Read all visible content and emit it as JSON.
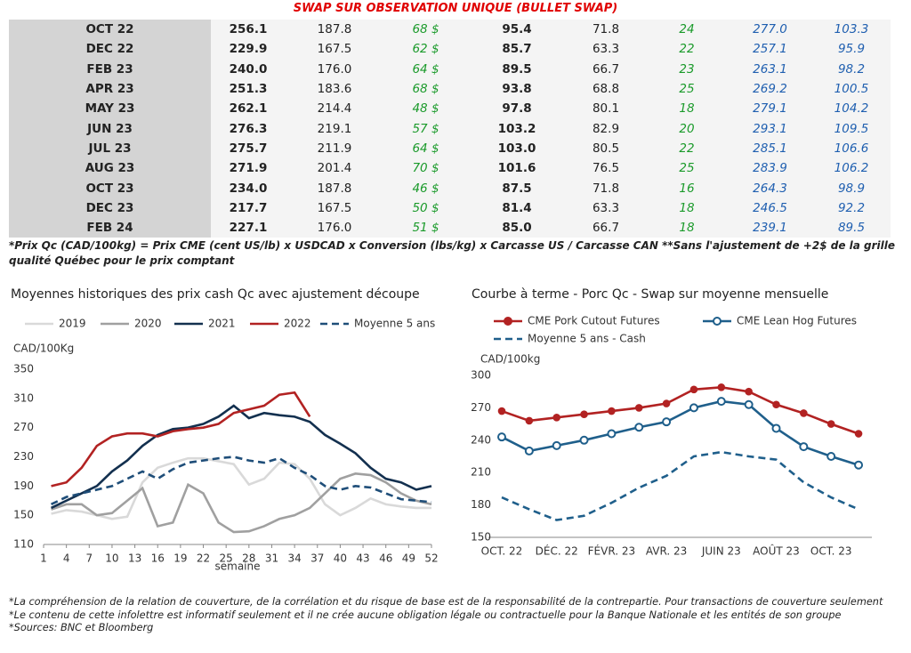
{
  "title": "SWAP SUR OBSERVATION UNIQUE (BULLET SWAP)",
  "table": {
    "rows": [
      [
        "OCT 22",
        "256.1",
        "187.8",
        "68 $",
        "95.4",
        "71.8",
        "24",
        "277.0",
        "103.3"
      ],
      [
        "DEC 22",
        "229.9",
        "167.5",
        "62 $",
        "85.7",
        "63.3",
        "22",
        "257.1",
        "95.9"
      ],
      [
        "FEB 23",
        "240.0",
        "176.0",
        "64 $",
        "89.5",
        "66.7",
        "23",
        "263.1",
        "98.2"
      ],
      [
        "APR 23",
        "251.3",
        "183.6",
        "68 $",
        "93.8",
        "68.8",
        "25",
        "269.2",
        "100.5"
      ],
      [
        "MAY 23",
        "262.1",
        "214.4",
        "48 $",
        "97.8",
        "80.1",
        "18",
        "279.1",
        "104.2"
      ],
      [
        "JUN 23",
        "276.3",
        "219.1",
        "57 $",
        "103.2",
        "82.9",
        "20",
        "293.1",
        "109.5"
      ],
      [
        "JUL 23",
        "275.7",
        "211.9",
        "64 $",
        "103.0",
        "80.5",
        "22",
        "285.1",
        "106.6"
      ],
      [
        "AUG 23",
        "271.9",
        "201.4",
        "70 $",
        "101.6",
        "76.5",
        "25",
        "283.9",
        "106.2"
      ],
      [
        "OCT 23",
        "234.0",
        "187.8",
        "46 $",
        "87.5",
        "71.8",
        "16",
        "264.3",
        "98.9"
      ],
      [
        "DEC 23",
        "217.7",
        "167.5",
        "50 $",
        "81.4",
        "63.3",
        "18",
        "246.5",
        "92.2"
      ],
      [
        "FEB 24",
        "227.1",
        "176.0",
        "51 $",
        "85.0",
        "66.7",
        "18",
        "239.1",
        "89.5"
      ]
    ]
  },
  "note": "*Prix Qc (CAD/100kg) = Prix CME (cent US/lb) x USDCAD x Conversion (lbs/kg) x Carcasse US / Carcasse CAN **Sans l'ajustement de +2$ de la grille qualité Québec pour le prix comptant",
  "footer": [
    "*La compréhension de la relation de couverture, de la corrélation et du risque de base est de la responsabilité de la contrepartie. Pour transactions de couverture seulement",
    "*Le contenu de cette infolettre est informatif seulement et il ne crée aucune obligation légale ou contractuelle pour la Banque Nationale et les entités de son groupe",
    "*Sources: BNC et Bloomberg"
  ],
  "chart_data": [
    {
      "type": "line",
      "title": "Moyennes historiques des prix cash Qc avec ajustement découpe",
      "y_label": "CAD/100Kg",
      "x_label": "semaine",
      "x": [
        2,
        4,
        6,
        8,
        10,
        12,
        14,
        16,
        18,
        20,
        22,
        24,
        26,
        28,
        30,
        32,
        34,
        36,
        38,
        40,
        42,
        44,
        46,
        48,
        50,
        52
      ],
      "xlim": [
        1,
        52
      ],
      "xticks": [
        1,
        4,
        7,
        10,
        13,
        16,
        19,
        22,
        25,
        28,
        31,
        34,
        37,
        40,
        43,
        46,
        49,
        52
      ],
      "ylim": [
        110,
        350
      ],
      "yticks": [
        110,
        150,
        190,
        230,
        270,
        310,
        350
      ],
      "series": [
        {
          "name": "2019",
          "color": "#d9d9d9",
          "values": [
            152,
            157,
            155,
            150,
            145,
            148,
            195,
            215,
            222,
            228,
            228,
            224,
            220,
            192,
            200,
            222,
            220,
            200,
            165,
            150,
            160,
            173,
            165,
            162,
            160,
            160
          ]
        },
        {
          "name": "2020",
          "color": "#a0a0a0",
          "values": [
            158,
            165,
            165,
            150,
            153,
            170,
            187,
            135,
            140,
            192,
            180,
            140,
            127,
            128,
            135,
            145,
            150,
            160,
            180,
            200,
            207,
            205,
            195,
            180,
            170,
            165
          ]
        },
        {
          "name": "2021",
          "color": "#13304f",
          "values": [
            160,
            170,
            180,
            190,
            210,
            225,
            245,
            260,
            268,
            270,
            275,
            285,
            300,
            283,
            290,
            287,
            285,
            278,
            260,
            248,
            235,
            215,
            200,
            195,
            185,
            190
          ]
        },
        {
          "name": "2022",
          "color": "#b22222",
          "values": [
            190,
            195,
            215,
            245,
            258,
            262,
            262,
            258,
            265,
            268,
            270,
            275,
            290,
            295,
            300,
            315,
            318,
            285,
            null,
            null,
            null,
            null,
            null,
            null,
            null,
            null
          ]
        },
        {
          "name": "Moyenne 5 ans",
          "color": "#1f4e79",
          "dash": true,
          "values": [
            165,
            175,
            180,
            185,
            190,
            200,
            210,
            200,
            213,
            222,
            225,
            228,
            230,
            225,
            222,
            228,
            215,
            205,
            190,
            185,
            190,
            188,
            180,
            172,
            170,
            168
          ]
        }
      ]
    },
    {
      "type": "line",
      "title": "Courbe à terme - Porc Qc - Swap sur moyenne mensuelle",
      "y_label": "CAD/100kg",
      "categories": [
        "OCT. 22",
        null,
        "DÉC. 22",
        null,
        "FÉVR. 23",
        null,
        "AVR. 23",
        null,
        "JUIN 23",
        null,
        "AOÛT 23",
        null,
        "OCT. 23",
        null
      ],
      "ylim": [
        150,
        300
      ],
      "yticks": [
        150,
        180,
        210,
        240,
        270,
        300
      ],
      "series": [
        {
          "name": "CME Pork Cutout Futures",
          "color": "#b22222",
          "marker": "filled",
          "values": [
            267,
            258,
            261,
            264,
            267,
            270,
            274,
            287,
            289,
            285,
            273,
            265,
            255,
            246
          ]
        },
        {
          "name": "CME Lean Hog Futures",
          "color": "#1f5f8b",
          "marker": "open",
          "values": [
            243,
            230,
            235,
            240,
            246,
            252,
            257,
            270,
            276,
            273,
            251,
            234,
            225,
            217
          ]
        },
        {
          "name": "Moyenne 5 ans - Cash",
          "color": "#1f5f8b",
          "dash": true,
          "values": [
            187,
            176,
            166,
            170,
            182,
            196,
            207,
            225,
            229,
            225,
            222,
            201,
            187,
            176
          ]
        }
      ]
    }
  ]
}
